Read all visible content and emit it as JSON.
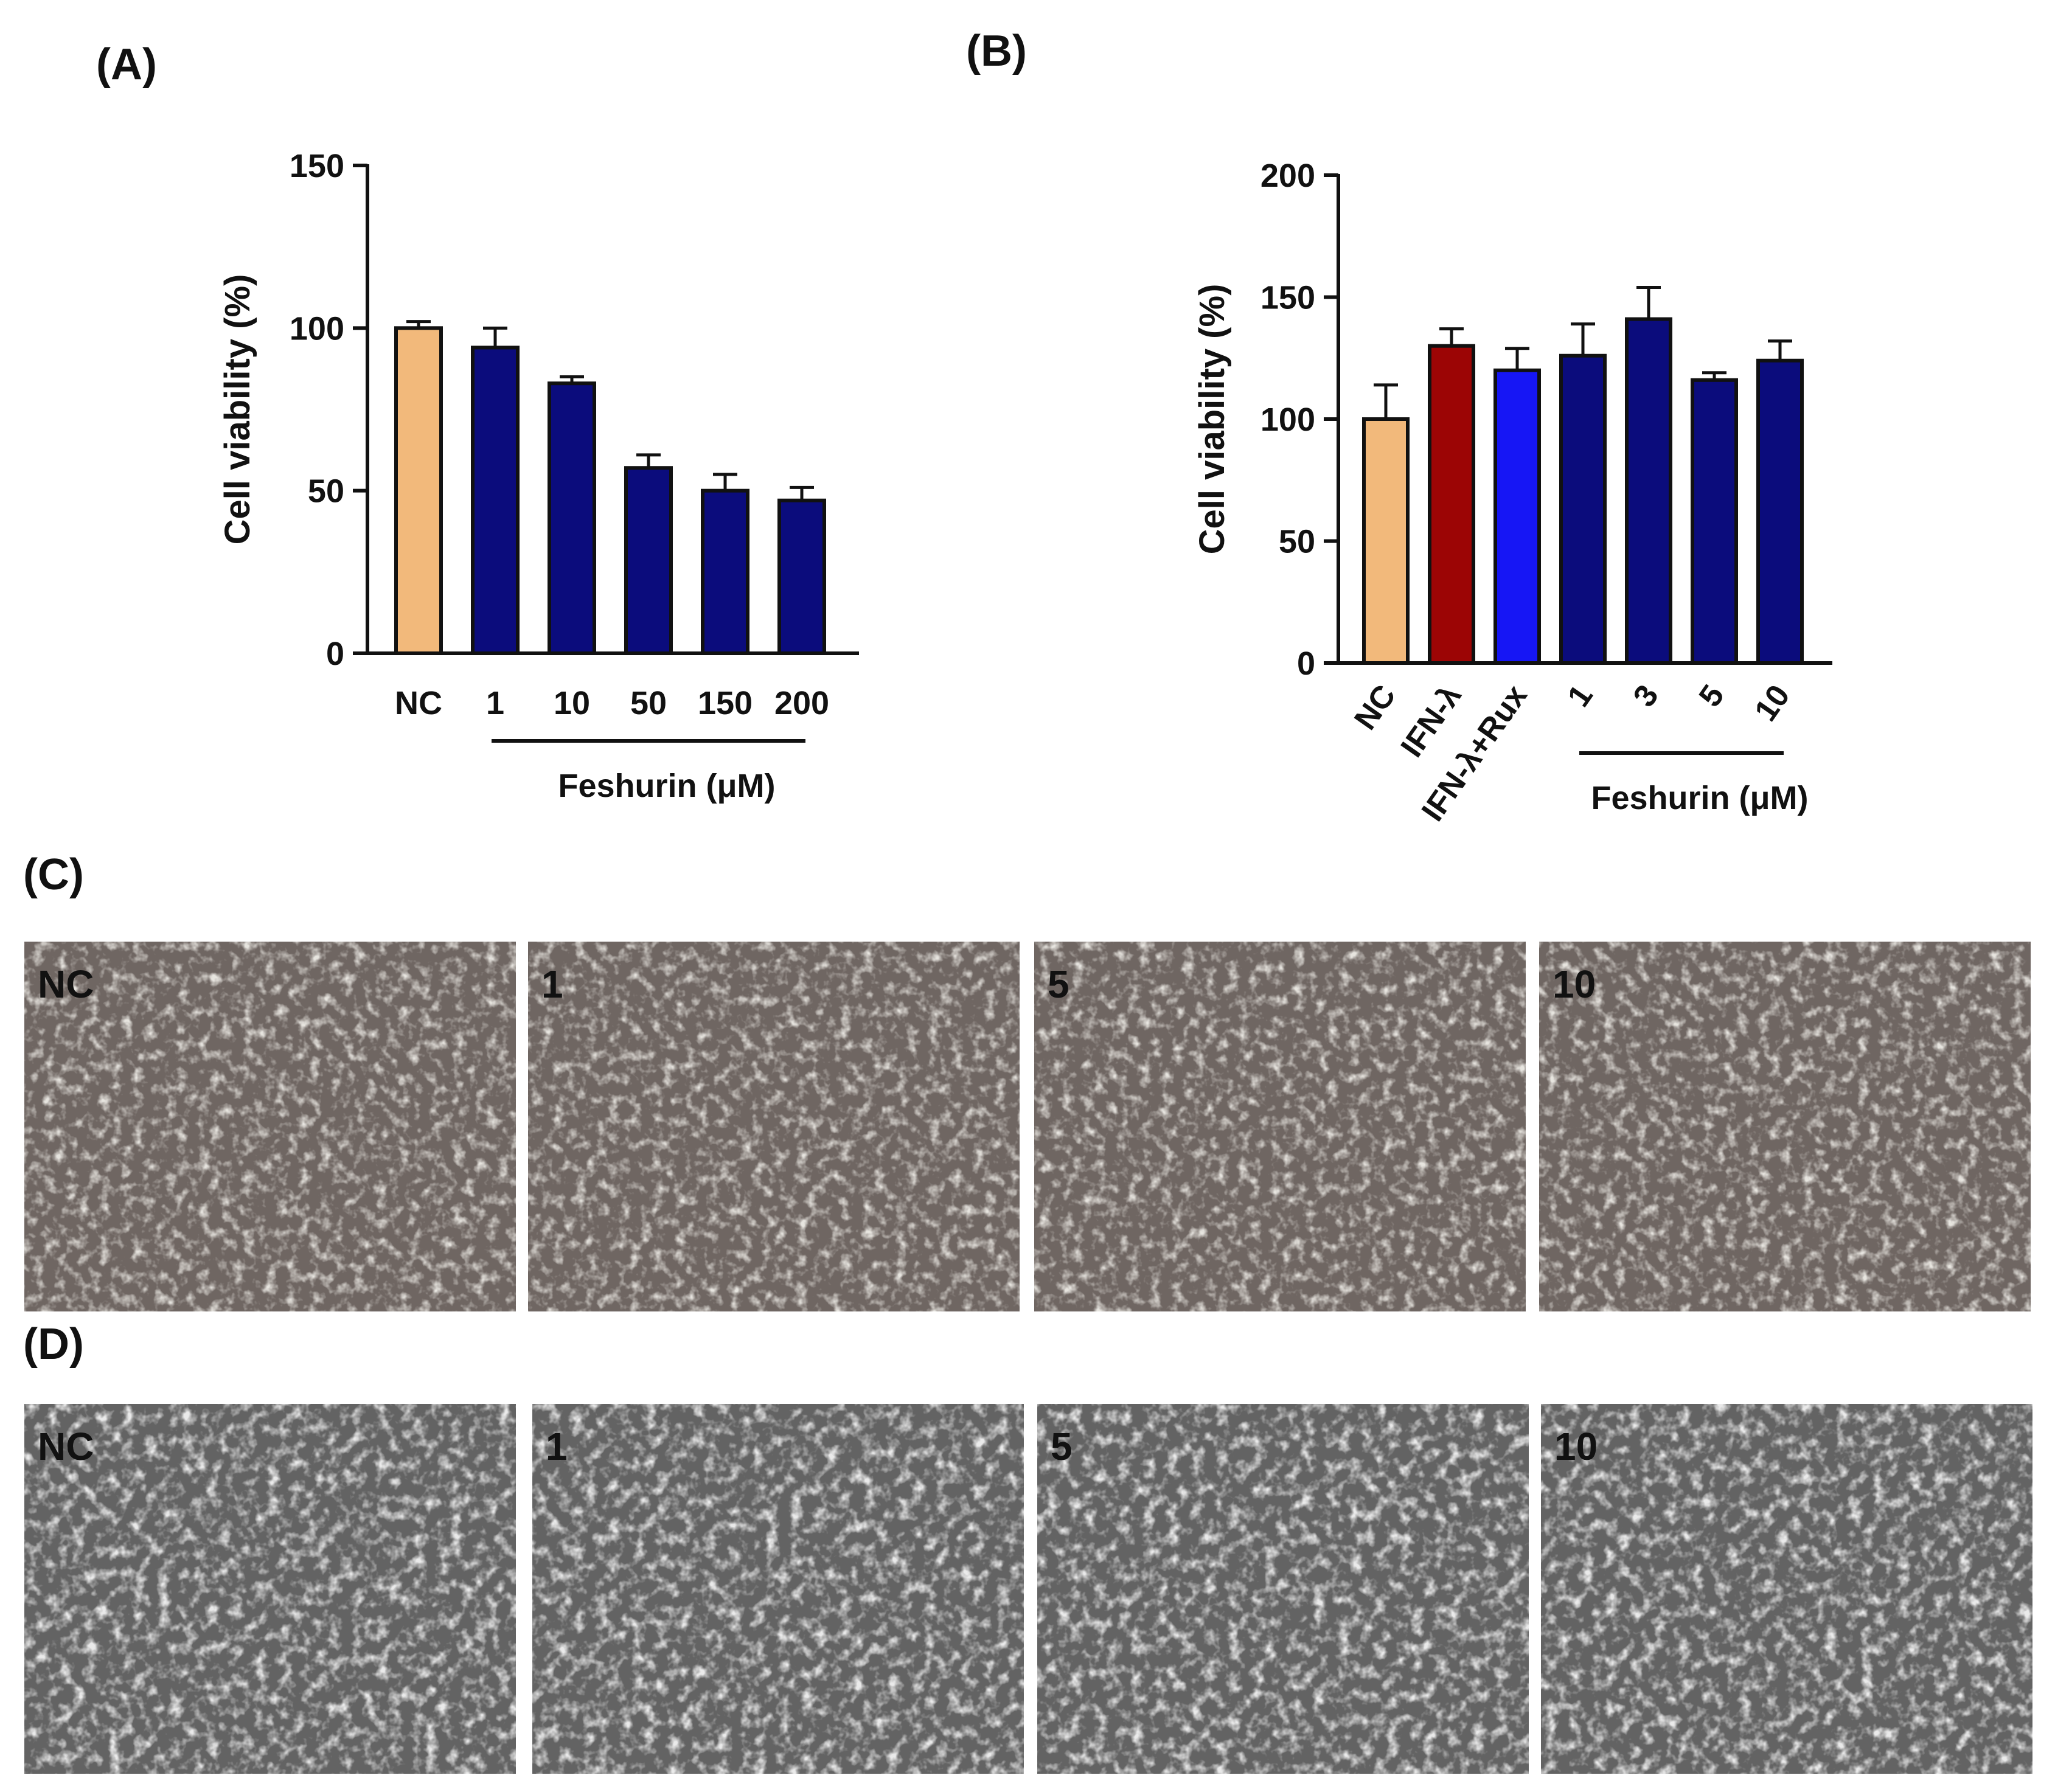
{
  "panels": {
    "A": {
      "label": "(A)"
    },
    "B": {
      "label": "(B)"
    },
    "C": {
      "label": "(C)",
      "image_labels": [
        "NC",
        "1",
        "5",
        "10"
      ],
      "tint": "#6f6662"
    },
    "D": {
      "label": "(D)",
      "image_labels": [
        "NC",
        "1",
        "5",
        "10"
      ],
      "tint": "#636363"
    }
  },
  "colors": {
    "nc": "#f2b97b",
    "feshurin": "#0b0c7c",
    "ifn": "#9c0505",
    "rux": "#1616f5",
    "axis": "#111111"
  },
  "chart_data": [
    {
      "type": "bar",
      "panel": "A",
      "categories": [
        "NC",
        "1",
        "10",
        "50",
        "150",
        "200"
      ],
      "values": [
        100,
        94,
        83,
        57,
        50,
        47
      ],
      "errors": [
        2,
        6,
        2,
        4,
        5,
        4
      ],
      "bar_colors": [
        "nc",
        "feshurin",
        "feshurin",
        "feshurin",
        "feshurin",
        "feshurin"
      ],
      "ylabel": "Cell viability (%)",
      "ylim": [
        0,
        150
      ],
      "yticks": [
        0,
        50,
        100,
        150
      ],
      "group_label": "Feshurin (μM)",
      "group_range": [
        1,
        5
      ],
      "grid": false
    },
    {
      "type": "bar",
      "panel": "B",
      "categories": [
        "NC",
        "IFN-λ",
        "IFN-λ+Rux",
        "1",
        "3",
        "5",
        "10"
      ],
      "values": [
        100,
        130,
        120,
        126,
        141,
        116,
        124
      ],
      "errors": [
        14,
        7,
        9,
        13,
        13,
        3,
        8
      ],
      "bar_colors": [
        "nc",
        "ifn",
        "rux",
        "feshurin",
        "feshurin",
        "feshurin",
        "feshurin"
      ],
      "ylabel": "Cell viability (%)",
      "ylim": [
        0,
        200
      ],
      "yticks": [
        0,
        50,
        100,
        150,
        200
      ],
      "group_label": "Feshurin (μM)",
      "group_range": [
        3,
        6
      ],
      "grid": false
    }
  ]
}
